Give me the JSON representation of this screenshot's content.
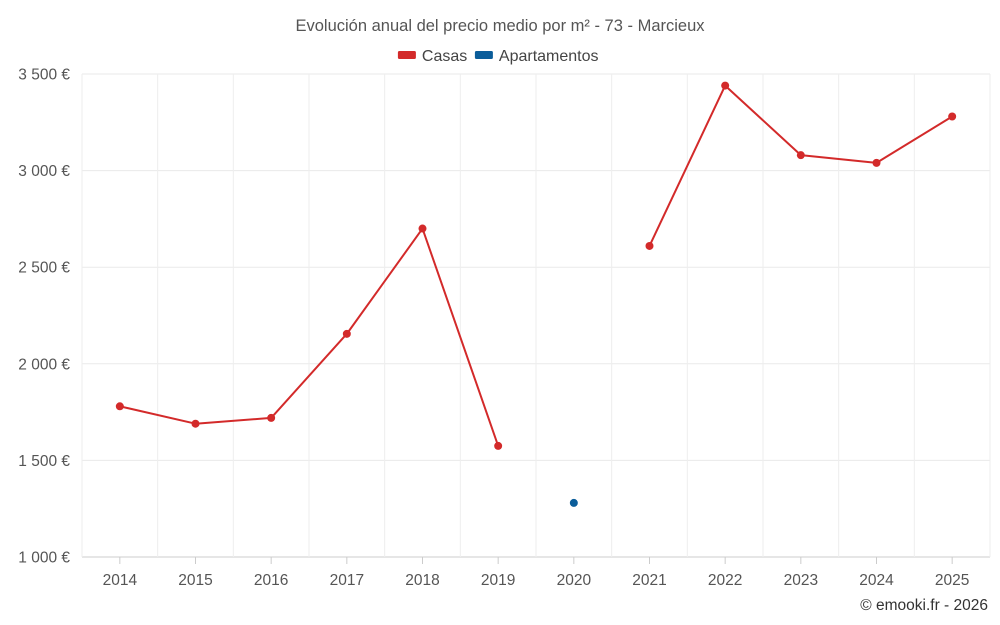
{
  "chart_data": {
    "type": "line",
    "title": "Evolución anual del precio medio por m² - 73 - Marcieux",
    "categories": [
      "2014",
      "2015",
      "2016",
      "2017",
      "2018",
      "2019",
      "2020",
      "2021",
      "2022",
      "2023",
      "2024",
      "2025"
    ],
    "y_ticks": [
      "1 000 €",
      "1 500 €",
      "2 000 €",
      "2 500 €",
      "3 000 €",
      "3 500 €"
    ],
    "ylim": [
      1000,
      3500
    ],
    "grid": true,
    "legend_position": "top-center",
    "series": [
      {
        "name": "Casas",
        "color": "#d32a2a",
        "values": [
          1780,
          1690,
          1720,
          2155,
          2700,
          1575,
          null,
          2610,
          3440,
          3080,
          3040,
          3280
        ]
      },
      {
        "name": "Apartamentos",
        "color": "#0b5d9a",
        "values": [
          null,
          null,
          null,
          null,
          null,
          null,
          1280,
          null,
          null,
          null,
          null,
          null
        ]
      }
    ],
    "credit": "© emooki.fr - 2026"
  }
}
